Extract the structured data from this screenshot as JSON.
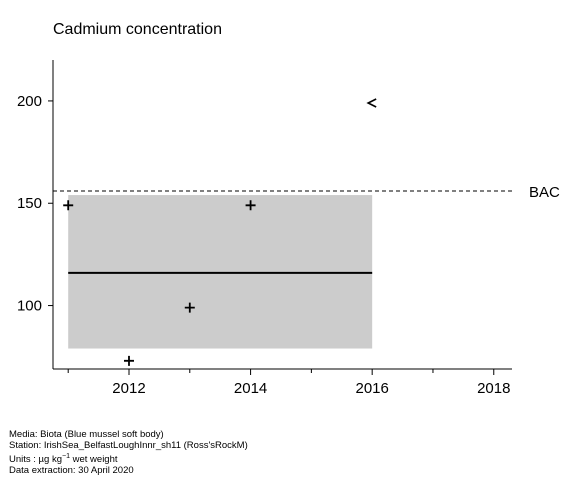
{
  "chart_data": {
    "type": "scatter",
    "title": "Cadmium concentration",
    "xlabel": "",
    "ylabel": "",
    "xlim": [
      2010.75,
      2018.3
    ],
    "ylim": [
      69,
      220
    ],
    "xticks_major": [
      2012,
      2014,
      2016,
      2018
    ],
    "xticks_minor": [
      2011,
      2013,
      2015,
      2017
    ],
    "yticks": [
      100,
      150,
      200
    ],
    "points": [
      {
        "x": 2011,
        "y": 149,
        "marker": "+"
      },
      {
        "x": 2012,
        "y": 73,
        "marker": "+"
      },
      {
        "x": 2013,
        "y": 99,
        "marker": "+"
      },
      {
        "x": 2014,
        "y": 149,
        "marker": "+"
      },
      {
        "x": 2016,
        "y": 199,
        "marker": "<"
      }
    ],
    "band": {
      "x_start": 2011,
      "x_end": 2016,
      "y_low": 79,
      "y_high": 154
    },
    "trend": {
      "x_start": 2011,
      "x_end": 2016,
      "y": 116
    },
    "reference_line": {
      "label": "BAC",
      "y": 156
    },
    "grid": false,
    "colors": {
      "band": "#cccccc",
      "line": "#000000",
      "text": "#000000"
    }
  },
  "footer": {
    "media": "Media: Biota (Blue mussel soft body)",
    "station": "Station: IrishSea_BelfastLoughInnr_sh11 (Ross'sRockM)",
    "units_prefix": "Units :  µg kg",
    "units_exp": "−1",
    "units_suffix": " wet weight",
    "extraction": "Data extraction: 30 April 2020"
  }
}
